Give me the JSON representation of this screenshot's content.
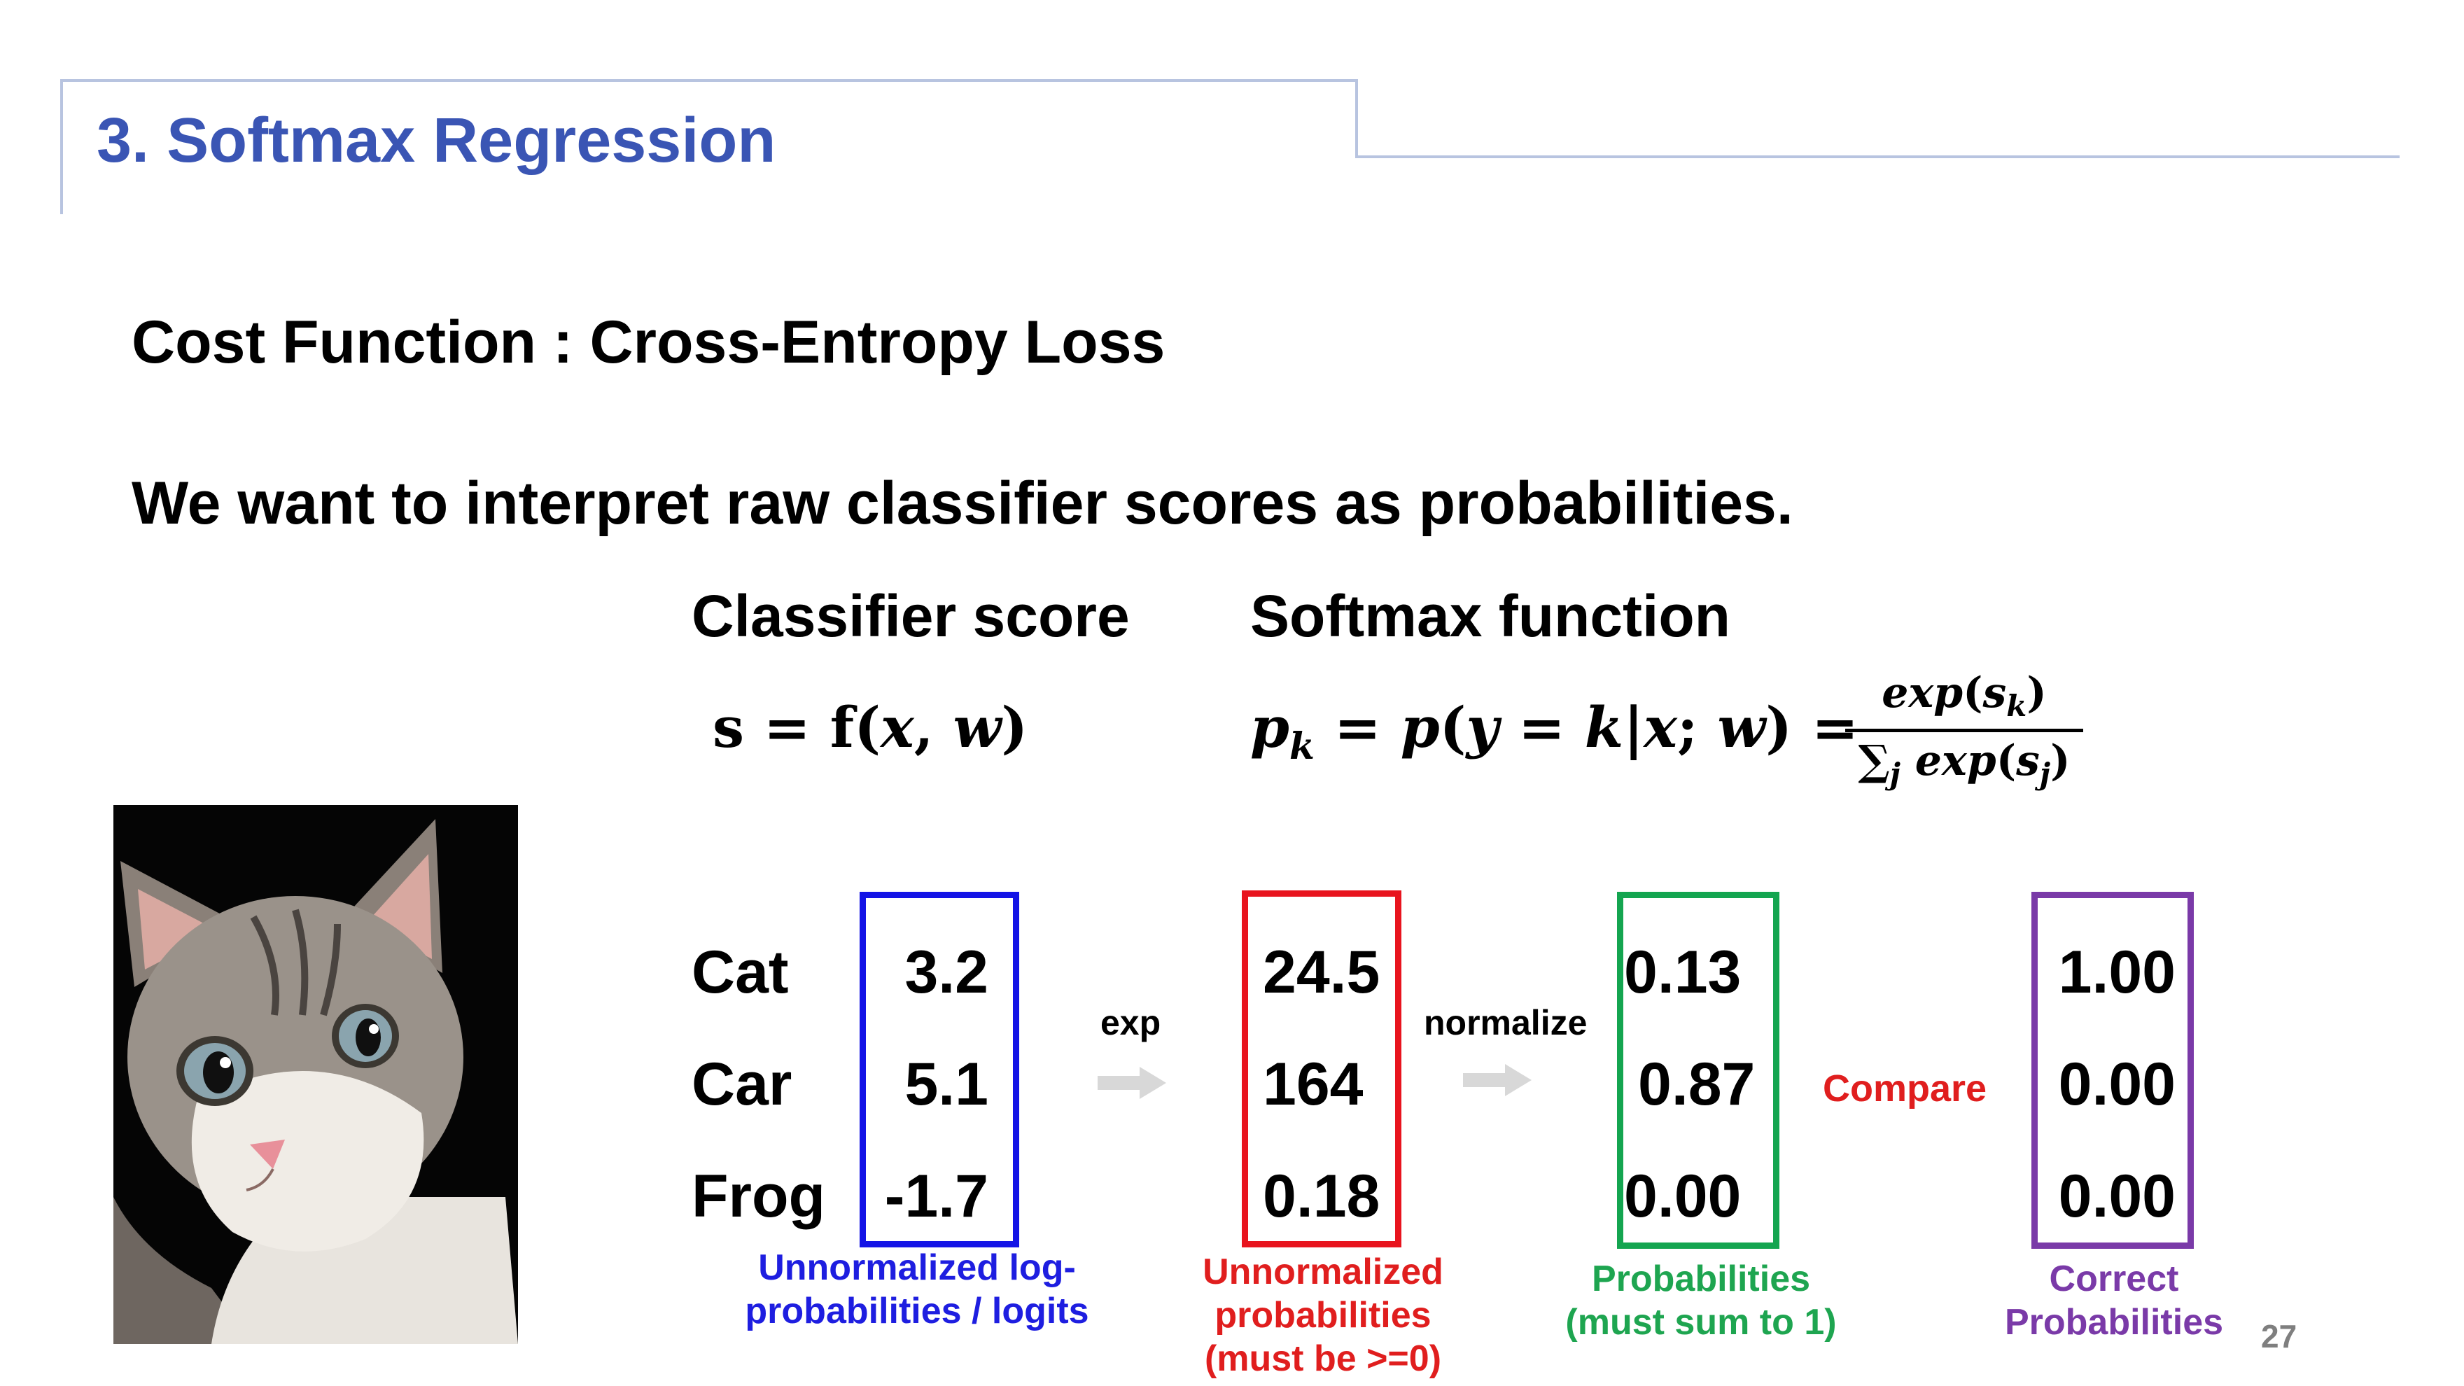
{
  "title": "3. Softmax Regression",
  "heading1": "Cost Function : Cross-Entropy Loss",
  "heading2": "We want to interpret raw classifier scores as probabilities.",
  "classifier_label": "Classifier score",
  "softmax_label": "Softmax function",
  "table": {
    "classes": [
      "Cat",
      "Car",
      "Frog"
    ],
    "scores": [
      "3.2",
      "5.1",
      "-1.7"
    ],
    "exp_values": [
      "24.5",
      "164",
      "0.18"
    ],
    "probabilities": [
      "0.13",
      "0.87",
      "0.00"
    ],
    "correct": [
      "1.00",
      "0.00",
      "0.00"
    ]
  },
  "arrows": {
    "exp": "exp",
    "normalize": "normalize"
  },
  "compare": "Compare",
  "captions": {
    "logits_line1": "Unnormalized log-",
    "logits_line2": "probabilities / logits",
    "unnorm_line1": "Unnormalized",
    "unnorm_line2": "probabilities",
    "unnorm_line3": "(must be >=0)",
    "prob_line1": "Probabilities",
    "prob_line2": "(must sum to 1)",
    "correct_line1": "Correct",
    "correct_line2": "Probabilities"
  },
  "page_number": "27",
  "colors": {
    "title": "#3a55b4",
    "blue": "#1414e6",
    "red": "#e8141e",
    "green": "#14a550",
    "purple": "#7a3aa8"
  }
}
